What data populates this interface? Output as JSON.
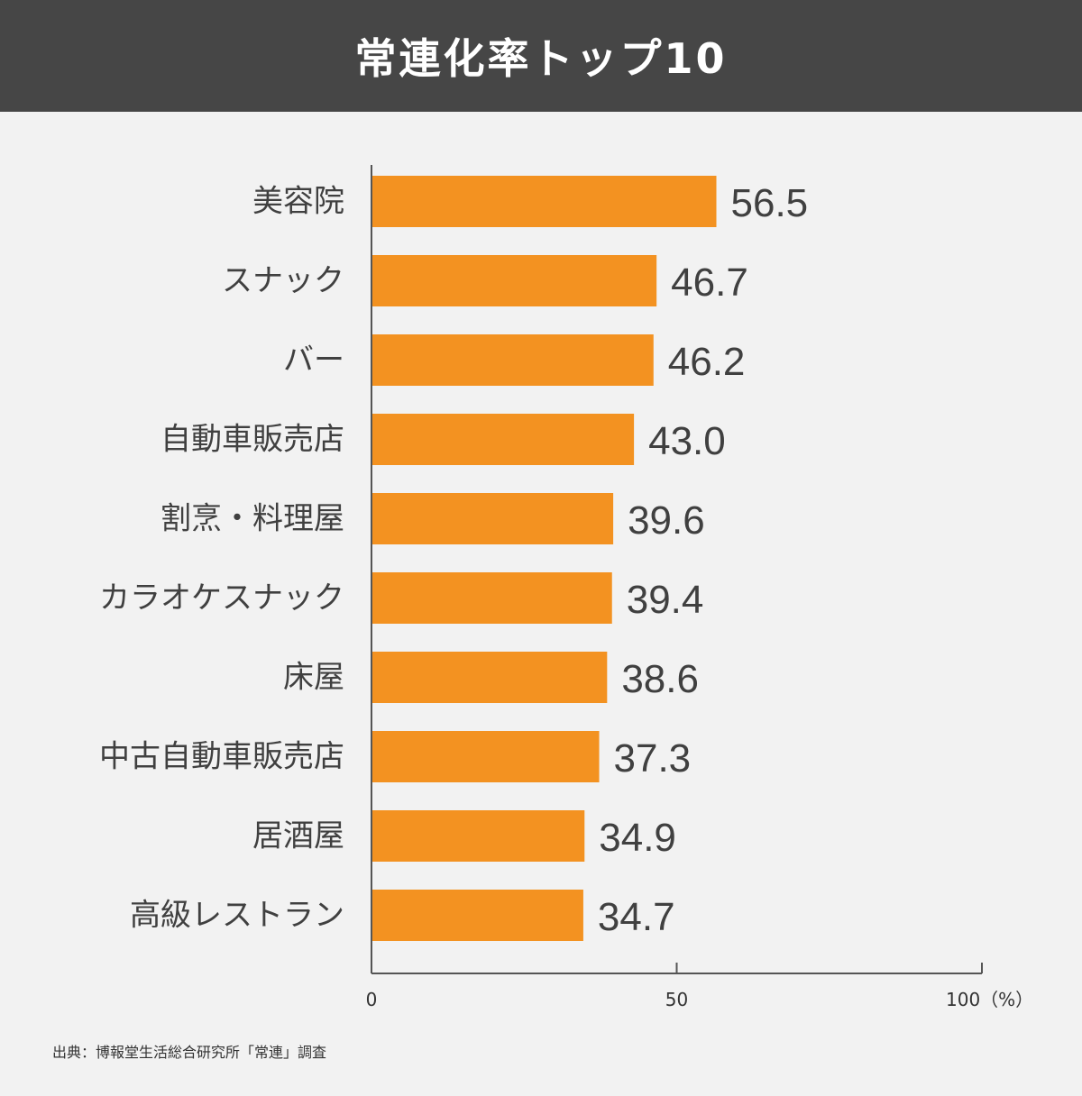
{
  "header": {
    "title": "常連化率トップ10"
  },
  "source": "出典：博報堂生活総合研究所「常連」調査",
  "colors": {
    "bar": "#f39221",
    "header_bg": "#464646",
    "background": "#f2f2f2",
    "text": "#404040",
    "axis": "#555555"
  },
  "chart_data": {
    "type": "bar",
    "orientation": "horizontal",
    "categories": [
      "美容院",
      "スナック",
      "バー",
      "自動車販売店",
      "割烹・料理屋",
      "カラオケスナック",
      "床屋",
      "中古自動車販売店",
      "居酒屋",
      "高級レストラン"
    ],
    "values": [
      56.5,
      46.7,
      46.2,
      43.0,
      39.6,
      39.4,
      38.6,
      37.3,
      34.9,
      34.7
    ],
    "value_labels": [
      "56.5",
      "46.7",
      "46.2",
      "43.0",
      "39.6",
      "39.4",
      "38.6",
      "37.3",
      "34.9",
      "34.7"
    ],
    "xlim": [
      0,
      100
    ],
    "x_ticks": [
      0,
      50,
      100
    ],
    "x_tick_labels": [
      "0",
      "50",
      "100（%）"
    ],
    "grid": false,
    "legend": "none"
  }
}
